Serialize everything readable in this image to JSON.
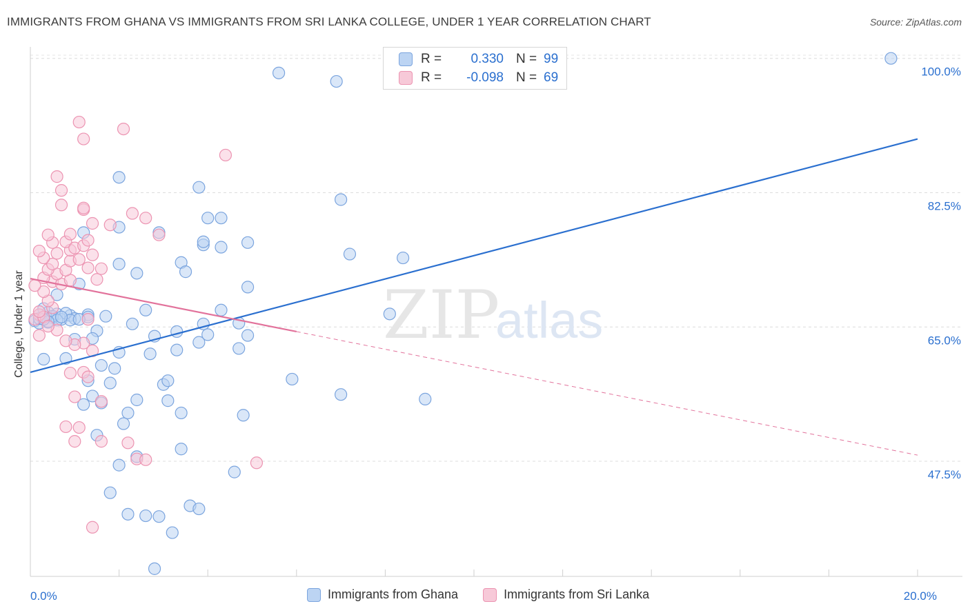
{
  "title": "IMMIGRANTS FROM GHANA VS IMMIGRANTS FROM SRI LANKA COLLEGE, UNDER 1 YEAR CORRELATION CHART",
  "source": "Source: ZipAtlas.com",
  "watermark": {
    "zip": "ZIP",
    "atlas": "atlas"
  },
  "stats": [
    {
      "r_label": "R =",
      "r": "0.330",
      "n_label": "N =",
      "n": "99",
      "color": "#7aa4de"
    },
    {
      "r_label": "R =",
      "r": "-0.098",
      "n_label": "N =",
      "n": "69",
      "color": "#ec93b1"
    }
  ],
  "legend": [
    {
      "label": "Immigrants from Ghana"
    },
    {
      "label": "Immigrants from Sri Lanka"
    }
  ],
  "chart_data": {
    "type": "scatter",
    "title": "IMMIGRANTS FROM GHANA VS IMMIGRANTS FROM SRI LANKA COLLEGE, UNDER 1 YEAR CORRELATION CHART",
    "xlabel": "",
    "ylabel": "College, Under 1 year",
    "xlim": [
      0,
      20
    ],
    "ylim": [
      32.5,
      101.5
    ],
    "x_tick_labels": [
      {
        "value": 0,
        "label": "0.0%"
      },
      {
        "value": 20,
        "label": "20.0%"
      }
    ],
    "y_ticks": [
      {
        "value": 47.5,
        "label": "47.5%"
      },
      {
        "value": 65.0,
        "label": "65.0%"
      },
      {
        "value": 82.5,
        "label": "82.5%"
      },
      {
        "value": 100.0,
        "label": "100.0%"
      }
    ],
    "grid": true,
    "series": [
      {
        "name": "Immigrants from Ghana",
        "color": "#7aa4de",
        "fill": "#bcd4f3",
        "trend": {
          "x": [
            0,
            20
          ],
          "y": [
            59.1,
            89.5
          ],
          "color": "#2a6fcf",
          "dashed_from": null
        },
        "points": [
          [
            0.2,
            66.6
          ],
          [
            0.3,
            66.3
          ],
          [
            0.1,
            65.8
          ],
          [
            0.4,
            66.9
          ],
          [
            0.5,
            66.2
          ],
          [
            0.3,
            67.4
          ],
          [
            0.6,
            66.7
          ],
          [
            0.2,
            65.5
          ],
          [
            0.7,
            66.0
          ],
          [
            0.9,
            66.5
          ],
          [
            0.6,
            69.2
          ],
          [
            1.1,
            70.6
          ],
          [
            1.3,
            66.6
          ],
          [
            1.5,
            64.5
          ],
          [
            1.7,
            66.4
          ],
          [
            1.4,
            63.5
          ],
          [
            1.0,
            63.4
          ],
          [
            0.8,
            60.9
          ],
          [
            0.3,
            60.8
          ],
          [
            1.3,
            58.0
          ],
          [
            1.4,
            56.0
          ],
          [
            1.6,
            55.1
          ],
          [
            1.2,
            54.9
          ],
          [
            1.5,
            50.9
          ],
          [
            1.8,
            57.7
          ],
          [
            1.6,
            60.0
          ],
          [
            1.9,
            59.6
          ],
          [
            2.0,
            61.7
          ],
          [
            2.2,
            53.8
          ],
          [
            2.4,
            55.5
          ],
          [
            2.1,
            52.4
          ],
          [
            2.0,
            47.0
          ],
          [
            2.4,
            48.1
          ],
          [
            1.8,
            43.4
          ],
          [
            2.2,
            40.6
          ],
          [
            2.6,
            40.4
          ],
          [
            2.9,
            40.3
          ],
          [
            3.2,
            38.2
          ],
          [
            3.6,
            41.7
          ],
          [
            3.8,
            41.3
          ],
          [
            2.8,
            33.5
          ],
          [
            3.4,
            49.1
          ],
          [
            3.4,
            53.8
          ],
          [
            3.1,
            55.4
          ],
          [
            3.0,
            57.5
          ],
          [
            3.1,
            58.0
          ],
          [
            2.7,
            61.5
          ],
          [
            2.3,
            65.4
          ],
          [
            2.6,
            67.2
          ],
          [
            2.8,
            63.8
          ],
          [
            3.3,
            62.0
          ],
          [
            3.3,
            64.4
          ],
          [
            3.8,
            63.0
          ],
          [
            3.9,
            65.4
          ],
          [
            4.0,
            64.0
          ],
          [
            4.3,
            67.2
          ],
          [
            4.7,
            65.5
          ],
          [
            4.7,
            62.2
          ],
          [
            4.8,
            53.5
          ],
          [
            4.6,
            46.1
          ],
          [
            4.9,
            63.9
          ],
          [
            4.9,
            70.2
          ],
          [
            3.4,
            73.4
          ],
          [
            3.5,
            72.2
          ],
          [
            2.4,
            72.0
          ],
          [
            2.0,
            73.2
          ],
          [
            1.2,
            77.3
          ],
          [
            2.0,
            78.0
          ],
          [
            2.9,
            77.3
          ],
          [
            3.9,
            75.7
          ],
          [
            3.9,
            76.1
          ],
          [
            4.0,
            79.2
          ],
          [
            4.3,
            79.2
          ],
          [
            4.3,
            75.4
          ],
          [
            4.9,
            76.0
          ],
          [
            3.8,
            83.2
          ],
          [
            2.0,
            84.5
          ],
          [
            5.9,
            58.2
          ],
          [
            7.0,
            56.2
          ],
          [
            8.9,
            55.6
          ],
          [
            8.1,
            66.7
          ],
          [
            7.2,
            74.5
          ],
          [
            8.4,
            74.0
          ],
          [
            7.0,
            81.6
          ],
          [
            5.6,
            98.1
          ],
          [
            6.9,
            97.0
          ],
          [
            19.4,
            100.0
          ],
          [
            0.4,
            65.6
          ],
          [
            1.0,
            66.1
          ],
          [
            1.3,
            66.3
          ],
          [
            0.5,
            66.4
          ],
          [
            0.8,
            66.8
          ],
          [
            0.9,
            65.9
          ],
          [
            0.2,
            66.1
          ],
          [
            0.6,
            65.9
          ],
          [
            0.4,
            65.7
          ],
          [
            1.1,
            66.0
          ],
          [
            0.7,
            66.3
          ],
          [
            0.3,
            66.0
          ]
        ]
      },
      {
        "name": "Immigrants from Sri Lanka",
        "color": "#ec93b1",
        "fill": "#f7c9d8",
        "trend": {
          "x": [
            0,
            20
          ],
          "y": [
            71.3,
            48.3
          ],
          "color": "#e2729b",
          "dashed_from": 6.0
        },
        "points": [
          [
            0.2,
            66.6
          ],
          [
            0.1,
            66.0
          ],
          [
            0.3,
            66.3
          ],
          [
            0.2,
            67.0
          ],
          [
            0.5,
            67.5
          ],
          [
            0.4,
            68.4
          ],
          [
            0.3,
            69.6
          ],
          [
            0.1,
            70.4
          ],
          [
            0.5,
            70.9
          ],
          [
            0.7,
            70.6
          ],
          [
            0.3,
            71.4
          ],
          [
            0.6,
            71.9
          ],
          [
            0.9,
            71.1
          ],
          [
            0.4,
            72.5
          ],
          [
            0.8,
            72.4
          ],
          [
            0.5,
            73.2
          ],
          [
            0.9,
            73.6
          ],
          [
            0.3,
            74.0
          ],
          [
            0.6,
            74.6
          ],
          [
            0.2,
            74.9
          ],
          [
            0.9,
            75.0
          ],
          [
            0.5,
            76.0
          ],
          [
            0.8,
            76.1
          ],
          [
            1.0,
            75.3
          ],
          [
            1.2,
            75.6
          ],
          [
            1.3,
            76.3
          ],
          [
            0.9,
            77.1
          ],
          [
            0.4,
            77.0
          ],
          [
            1.4,
            74.4
          ],
          [
            1.3,
            72.7
          ],
          [
            1.5,
            71.2
          ],
          [
            1.6,
            72.6
          ],
          [
            1.1,
            73.8
          ],
          [
            0.7,
            80.9
          ],
          [
            1.2,
            80.3
          ],
          [
            1.2,
            80.5
          ],
          [
            0.7,
            82.8
          ],
          [
            0.6,
            84.6
          ],
          [
            1.4,
            78.5
          ],
          [
            1.8,
            78.3
          ],
          [
            2.3,
            79.8
          ],
          [
            2.6,
            79.2
          ],
          [
            2.9,
            77.0
          ],
          [
            2.1,
            90.8
          ],
          [
            1.2,
            89.5
          ],
          [
            1.1,
            91.7
          ],
          [
            4.4,
            87.4
          ],
          [
            1.3,
            66.0
          ],
          [
            1.4,
            61.9
          ],
          [
            1.2,
            62.9
          ],
          [
            1.0,
            62.7
          ],
          [
            0.8,
            63.2
          ],
          [
            0.9,
            59.0
          ],
          [
            1.2,
            59.1
          ],
          [
            1.3,
            58.5
          ],
          [
            1.0,
            55.9
          ],
          [
            0.8,
            52.0
          ],
          [
            1.1,
            51.9
          ],
          [
            1.0,
            50.1
          ],
          [
            1.6,
            50.1
          ],
          [
            1.6,
            55.3
          ],
          [
            2.2,
            49.9
          ],
          [
            2.4,
            47.8
          ],
          [
            2.6,
            47.7
          ],
          [
            1.4,
            38.9
          ],
          [
            5.1,
            47.3
          ],
          [
            0.6,
            64.6
          ],
          [
            0.2,
            63.9
          ],
          [
            0.4,
            65.1
          ]
        ]
      }
    ]
  }
}
